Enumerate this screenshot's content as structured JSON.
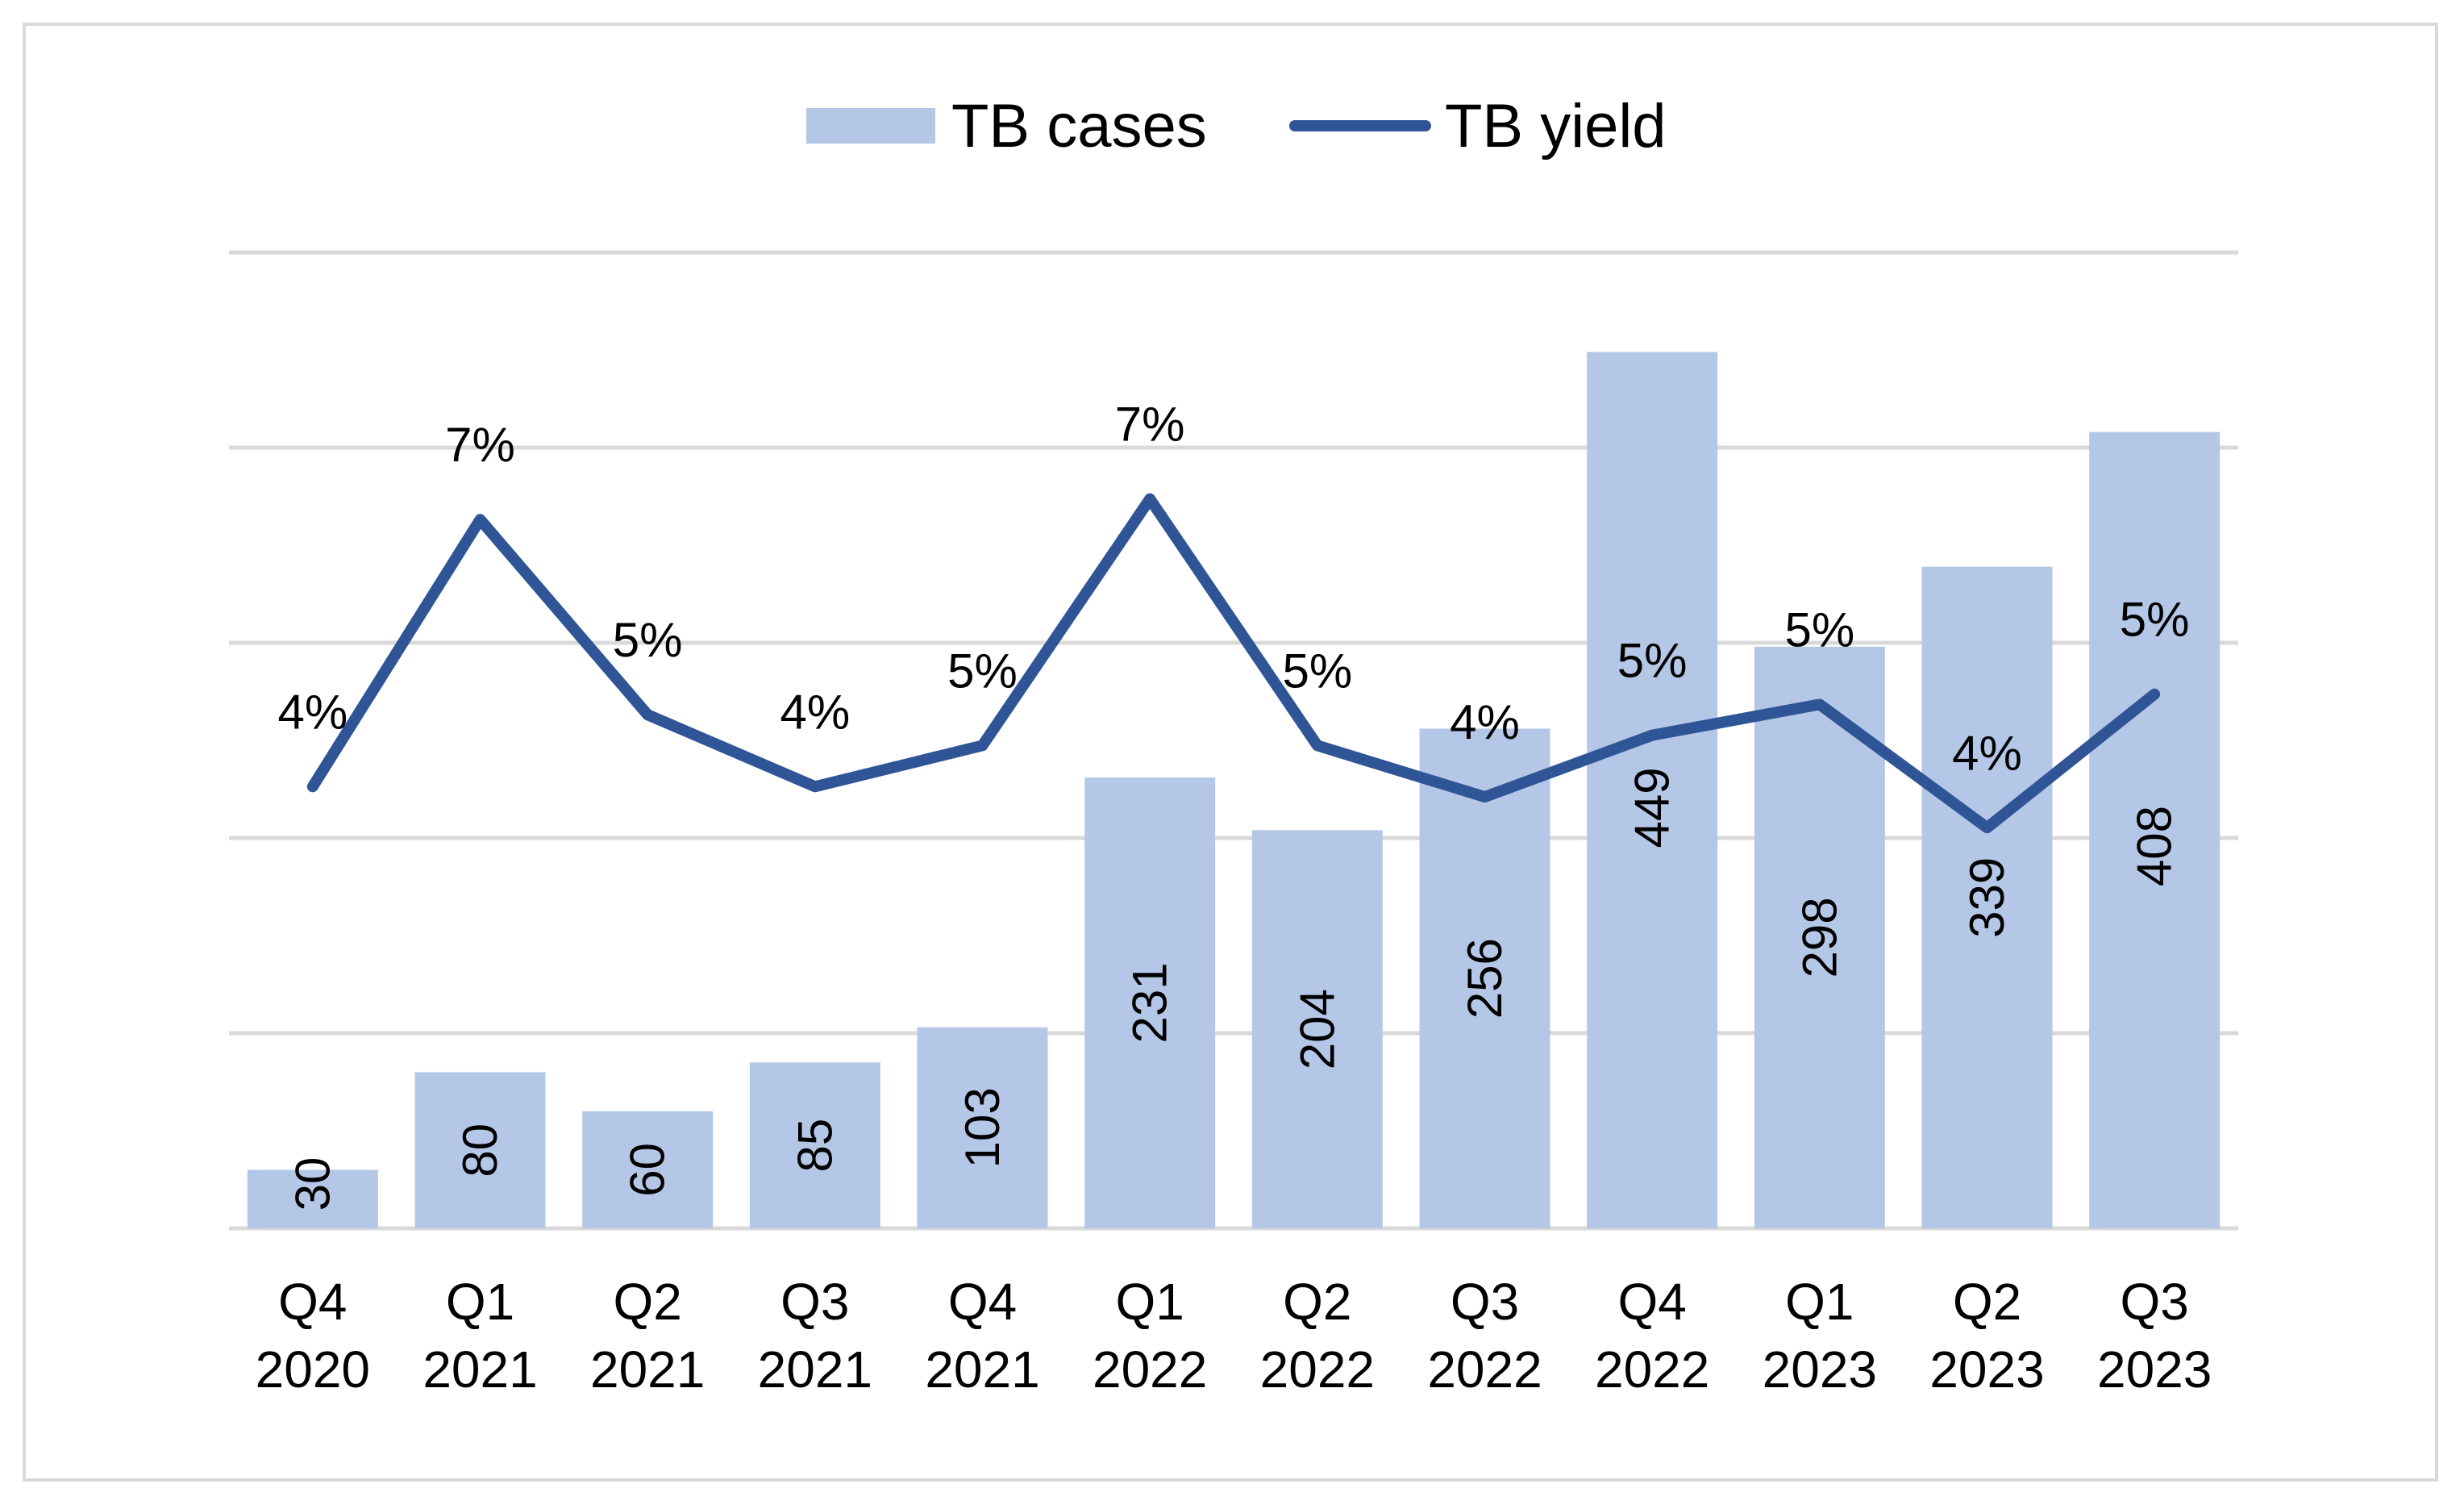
{
  "chart_data": {
    "type": "bar",
    "categories": [
      [
        "Q4",
        "2020"
      ],
      [
        "Q1",
        "2021"
      ],
      [
        "Q2",
        "2021"
      ],
      [
        "Q3",
        "2021"
      ],
      [
        "Q4",
        "2021"
      ],
      [
        "Q1",
        "2022"
      ],
      [
        "Q2",
        "2022"
      ],
      [
        "Q3",
        "2022"
      ],
      [
        "Q4",
        "2022"
      ],
      [
        "Q1",
        "2023"
      ],
      [
        "Q2",
        "2023"
      ],
      [
        "Q3",
        "2023"
      ]
    ],
    "series": [
      {
        "name": "TB cases",
        "type": "bar",
        "axis": "left",
        "color": "#b4c7e7",
        "values": [
          30,
          80,
          60,
          85,
          103,
          231,
          204,
          256,
          449,
          298,
          339,
          408
        ],
        "labels": [
          "30",
          "80",
          "60",
          "85",
          "103",
          "231",
          "204",
          "256",
          "449",
          "298",
          "339",
          "408"
        ]
      },
      {
        "name": "TB yield",
        "type": "line",
        "axis": "right",
        "color": "#2f5597",
        "values": [
          4.3,
          6.9,
          5.0,
          4.3,
          4.7,
          7.1,
          4.7,
          4.2,
          4.8,
          5.1,
          3.9,
          5.2
        ],
        "labels": [
          "4%",
          "7%",
          "5%",
          "4%",
          "5%",
          "7%",
          "5%",
          "4%",
          "5%",
          "5%",
          "4%",
          "5%"
        ]
      }
    ],
    "ylim": [
      0,
      500
    ],
    "ylim_right": [
      0,
      9.5
    ],
    "y_grid_step": 100,
    "grid": true,
    "legend_position": "top",
    "title": "",
    "xlabel": "",
    "ylabel": ""
  }
}
